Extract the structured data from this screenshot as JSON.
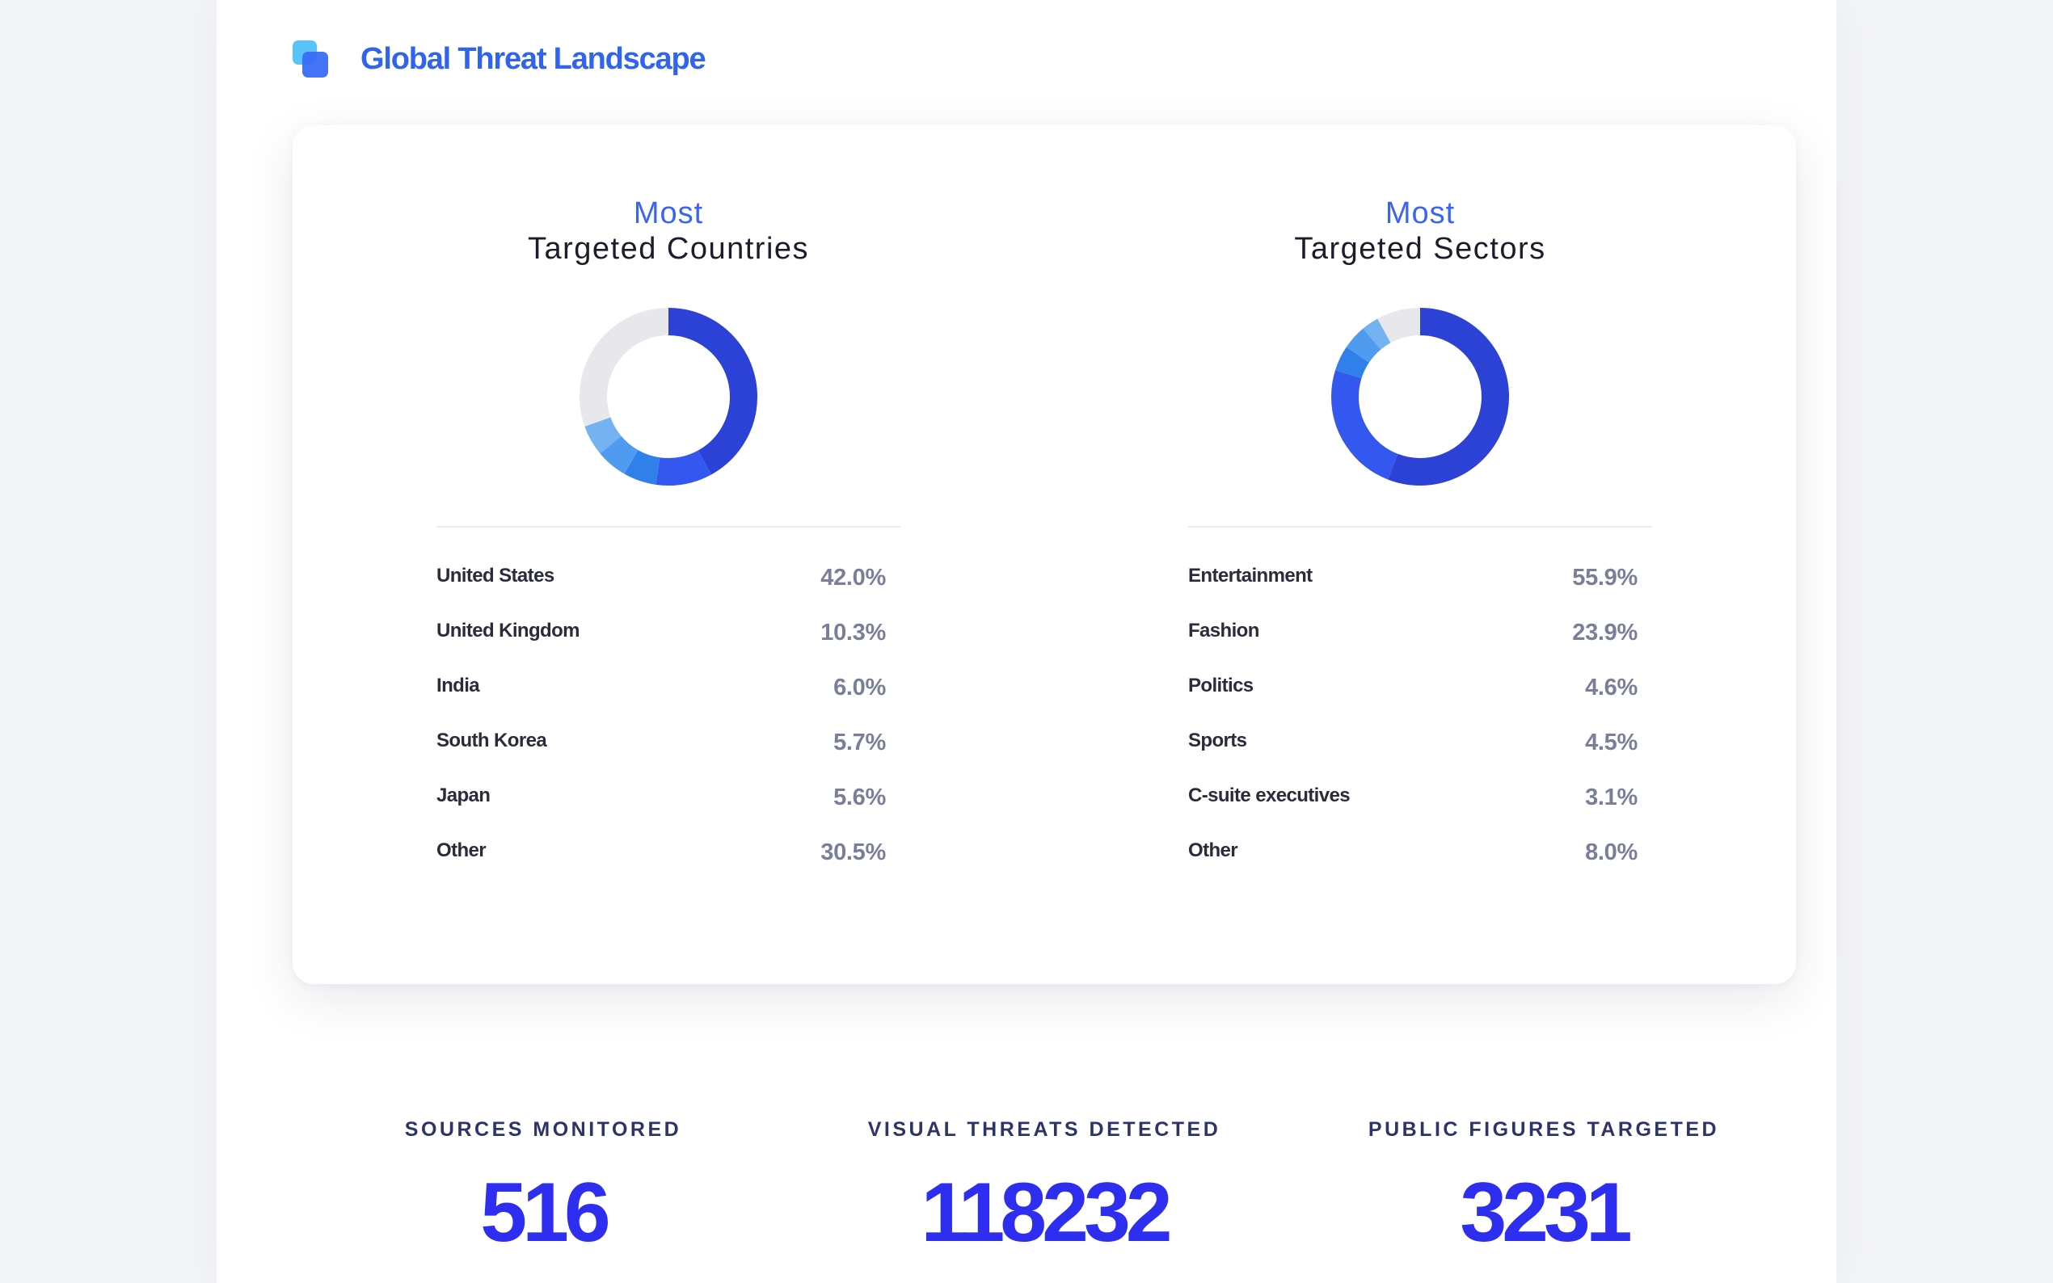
{
  "header": {
    "title": "Global Threat Landscape"
  },
  "colors": {
    "accent": "#2f63f0",
    "title_accent": "#3a64f2",
    "stat_number": "#2e2ef0",
    "donut_palette": [
      "#2c41d6",
      "#3457ef",
      "#2f80ea",
      "#4f9bef",
      "#74b2f2",
      "#e8e8ec"
    ]
  },
  "panels": [
    {
      "title_line1": "Most",
      "title_line2": "Targeted Countries"
    },
    {
      "title_line1": "Most",
      "title_line2": "Targeted Sectors"
    }
  ],
  "chart_data": [
    {
      "type": "pie",
      "title": "Most Targeted Countries",
      "categories": [
        "United States",
        "United Kingdom",
        "India",
        "South Korea",
        "Japan",
        "Other"
      ],
      "values": [
        42.0,
        10.3,
        6.0,
        5.7,
        5.6,
        30.5
      ],
      "value_labels": [
        "42.0%",
        "10.3%",
        "6.0%",
        "5.7%",
        "5.6%",
        "30.5%"
      ]
    },
    {
      "type": "pie",
      "title": "Most Targeted Sectors",
      "categories": [
        "Entertainment",
        "Fashion",
        "Politics",
        "Sports",
        "C-suite executives",
        "Other"
      ],
      "values": [
        55.9,
        23.9,
        4.6,
        4.5,
        3.1,
        8.0
      ],
      "value_labels": [
        "55.9%",
        "23.9%",
        "4.6%",
        "4.5%",
        "3.1%",
        "8.0%"
      ]
    }
  ],
  "stats": [
    {
      "label": "SOURCES MONITORED",
      "value": "516"
    },
    {
      "label": "VISUAL THREATS DETECTED",
      "value": "118232"
    },
    {
      "label": "PUBLIC FIGURES TARGETED",
      "value": "3231"
    }
  ]
}
